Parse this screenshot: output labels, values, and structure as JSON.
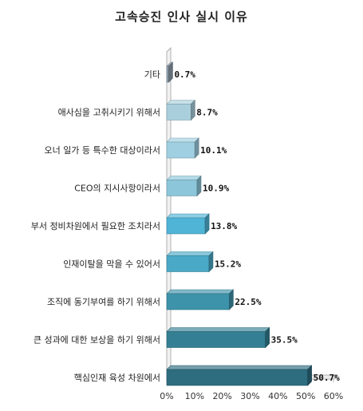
{
  "chart_data": {
    "type": "bar",
    "orientation": "horizontal",
    "title": "고속승진 인사 실시 이유",
    "categories": [
      "기타",
      "애사심을 고취시키기 위해서",
      "오너 일가 등 특수한 대상이라서",
      "CEO의 지시사항이라서",
      "부서 정비차원에서 필요한 조치라서",
      "인재이탈을 막을 수 있어서",
      "조직에 동기부여를 하기 위해서",
      "큰 성과에 대한 보상을 하기 위해서",
      "핵심인재 육성 차원에서"
    ],
    "values": [
      0.7,
      8.7,
      10.1,
      10.9,
      13.8,
      15.2,
      22.5,
      35.5,
      50.7
    ],
    "value_labels": [
      "0.7%",
      "8.7%",
      "10.1%",
      "10.9%",
      "13.8%",
      "15.2%",
      "22.5%",
      "35.5%",
      "50.7%"
    ],
    "xlim": [
      0,
      60
    ],
    "x_ticks": [
      "0%",
      "10%",
      "20%",
      "30%",
      "40%",
      "50%",
      "60%"
    ],
    "grid": false,
    "legend": "none",
    "bar_colors": [
      "#8f9fae",
      "#a9cfdc",
      "#9fcfe0",
      "#8cc6da",
      "#4fb4d6",
      "#4aa9c6",
      "#3d93aa",
      "#347f93",
      "#2e6d80"
    ],
    "axis_color": "#b0b0b0"
  }
}
